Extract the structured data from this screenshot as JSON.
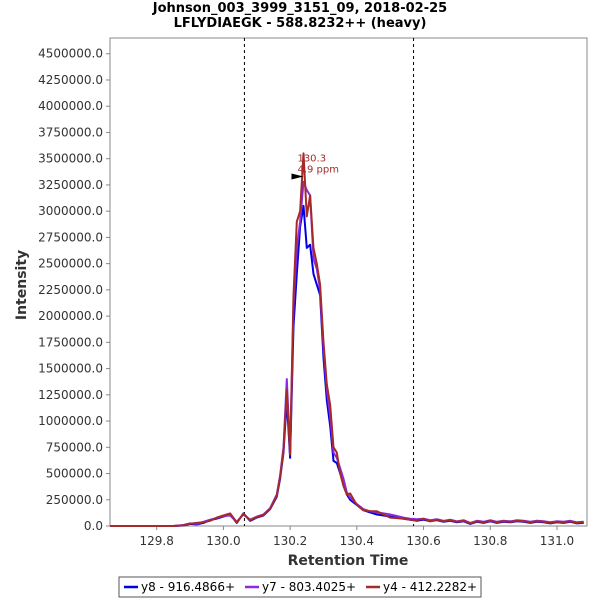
{
  "chart_data": {
    "type": "line",
    "title": "Johnson_003_3999_3151_09, 2018-02-25",
    "subtitle": "LFLYDIAEGK - 588.8232++ (heavy)",
    "xlabel": "Retention Time",
    "ylabel": "Intensity",
    "xlim": [
      129.66,
      131.09
    ],
    "ylim": [
      0,
      4650000
    ],
    "x_ticks": [
      129.8,
      130.0,
      130.2,
      130.4,
      130.6,
      130.8,
      131.0
    ],
    "x_tick_labels": [
      "129.8",
      "130.0",
      "130.2",
      "130.4",
      "130.6",
      "130.8",
      "131.0"
    ],
    "y_ticks": [
      0,
      250000,
      500000,
      750000,
      1000000,
      1250000,
      1500000,
      1750000,
      2000000,
      2250000,
      2500000,
      2750000,
      3000000,
      3250000,
      3500000,
      3750000,
      4000000,
      4250000,
      4500000
    ],
    "y_tick_labels": [
      "0.0",
      "250000.0",
      "500000.0",
      "750000.0",
      "1000000.0",
      "1250000.0",
      "1500000.0",
      "1750000.0",
      "2000000.0",
      "2250000.0",
      "2500000.0",
      "2750000.0",
      "3000000.0",
      "3250000.0",
      "3500000.0",
      "3750000.0",
      "4000000.0",
      "4250000.0",
      "4500000.0"
    ],
    "integration_bounds": [
      130.063,
      130.57
    ],
    "annotation": {
      "x": 130.24,
      "y": 3330000,
      "line1": "130.3",
      "line2": "4.9 ppm",
      "color": "#a52a2a"
    },
    "legend_position": "bottom",
    "series": [
      {
        "name": "y8 - 916.4866+",
        "color": "#0000e0",
        "x": [
          129.66,
          129.7,
          129.75,
          129.8,
          129.85,
          129.88,
          129.9,
          129.92,
          129.94,
          129.96,
          129.98,
          130.0,
          130.02,
          130.04,
          130.06,
          130.08,
          130.1,
          130.12,
          130.14,
          130.16,
          130.17,
          130.18,
          130.19,
          130.2,
          130.21,
          130.22,
          130.23,
          130.24,
          130.25,
          130.26,
          130.27,
          130.28,
          130.29,
          130.3,
          130.31,
          130.32,
          130.33,
          130.34,
          130.35,
          130.36,
          130.37,
          130.38,
          130.4,
          130.42,
          130.44,
          130.46,
          130.48,
          130.5,
          130.52,
          130.54,
          130.56,
          130.58,
          130.6,
          130.62,
          130.64,
          130.66,
          130.68,
          130.7,
          130.72,
          130.74,
          130.76,
          130.78,
          130.8,
          130.82,
          130.84,
          130.86,
          130.88,
          130.9,
          130.92,
          130.94,
          130.96,
          130.98,
          131.0,
          131.02,
          131.04,
          131.06,
          131.08
        ],
        "values": [
          0,
          0,
          0,
          0,
          0,
          5000,
          20000,
          15000,
          30000,
          55000,
          70000,
          90000,
          110000,
          30000,
          120000,
          50000,
          80000,
          100000,
          160000,
          280000,
          450000,
          700000,
          1200000,
          650000,
          1900000,
          2400000,
          2850000,
          3050000,
          2650000,
          2680000,
          2400000,
          2300000,
          2200000,
          1600000,
          1200000,
          950000,
          620000,
          600000,
          500000,
          420000,
          300000,
          250000,
          200000,
          150000,
          130000,
          110000,
          100000,
          90000,
          80000,
          70000,
          60000,
          50000,
          60000,
          45000,
          55000,
          40000,
          50000,
          35000,
          45000,
          20000,
          40000,
          30000,
          45000,
          30000,
          40000,
          35000,
          45000,
          40000,
          30000,
          40000,
          35000,
          25000,
          35000,
          30000,
          40000,
          25000,
          30000
        ]
      },
      {
        "name": "y7 - 803.4025+",
        "color": "#8a2be2",
        "x": [
          129.66,
          129.7,
          129.75,
          129.8,
          129.85,
          129.88,
          129.9,
          129.92,
          129.94,
          129.96,
          129.98,
          130.0,
          130.02,
          130.04,
          130.06,
          130.08,
          130.1,
          130.12,
          130.14,
          130.16,
          130.17,
          130.18,
          130.19,
          130.2,
          130.21,
          130.22,
          130.23,
          130.24,
          130.25,
          130.26,
          130.27,
          130.28,
          130.29,
          130.3,
          130.31,
          130.32,
          130.33,
          130.34,
          130.35,
          130.36,
          130.37,
          130.38,
          130.4,
          130.42,
          130.44,
          130.46,
          130.48,
          130.5,
          130.52,
          130.54,
          130.56,
          130.58,
          130.6,
          130.62,
          130.64,
          130.66,
          130.68,
          130.7,
          130.72,
          130.74,
          130.76,
          130.78,
          130.8,
          130.82,
          130.84,
          130.86,
          130.88,
          130.9,
          130.92,
          130.94,
          130.96,
          130.98,
          131.0,
          131.02,
          131.04,
          131.06,
          131.08
        ],
        "values": [
          0,
          0,
          0,
          0,
          0,
          10000,
          25000,
          20000,
          40000,
          60000,
          75000,
          95000,
          100000,
          40000,
          110000,
          60000,
          90000,
          110000,
          170000,
          300000,
          480000,
          750000,
          1400000,
          700000,
          2100000,
          2650000,
          2900000,
          3280000,
          3200000,
          3150000,
          2550000,
          2450000,
          2250000,
          1700000,
          1300000,
          1050000,
          700000,
          650000,
          550000,
          450000,
          320000,
          270000,
          210000,
          160000,
          140000,
          130000,
          120000,
          110000,
          95000,
          80000,
          70000,
          65000,
          70000,
          55000,
          65000,
          50000,
          60000,
          45000,
          55000,
          30000,
          50000,
          40000,
          55000,
          40000,
          50000,
          45000,
          55000,
          50000,
          40000,
          50000,
          45000,
          35000,
          45000,
          40000,
          50000,
          35000,
          40000
        ]
      },
      {
        "name": "y4 - 412.2282+",
        "color": "#a52a2a",
        "x": [
          129.66,
          129.7,
          129.75,
          129.8,
          129.85,
          129.88,
          129.9,
          129.92,
          129.94,
          129.96,
          129.98,
          130.0,
          130.02,
          130.04,
          130.06,
          130.08,
          130.1,
          130.12,
          130.14,
          130.16,
          130.17,
          130.18,
          130.19,
          130.2,
          130.21,
          130.22,
          130.23,
          130.24,
          130.25,
          130.26,
          130.27,
          130.28,
          130.29,
          130.3,
          130.31,
          130.32,
          130.33,
          130.34,
          130.35,
          130.36,
          130.37,
          130.38,
          130.4,
          130.42,
          130.44,
          130.46,
          130.48,
          130.5,
          130.52,
          130.54,
          130.56,
          130.58,
          130.6,
          130.62,
          130.64,
          130.66,
          130.68,
          130.7,
          130.72,
          130.74,
          130.76,
          130.78,
          130.8,
          130.82,
          130.84,
          130.86,
          130.88,
          130.9,
          130.92,
          130.94,
          130.96,
          130.98,
          131.0,
          131.02,
          131.04,
          131.06,
          131.08
        ],
        "values": [
          0,
          0,
          0,
          0,
          0,
          8000,
          22000,
          30000,
          35000,
          50000,
          80000,
          100000,
          120000,
          35000,
          115000,
          55000,
          85000,
          105000,
          165000,
          290000,
          470000,
          720000,
          1300000,
          680000,
          2200000,
          2900000,
          3000000,
          3550000,
          2950000,
          3150000,
          2650000,
          2500000,
          2300000,
          1750000,
          1350000,
          1150000,
          750000,
          700000,
          500000,
          380000,
          300000,
          310000,
          200000,
          150000,
          140000,
          140000,
          110000,
          80000,
          75000,
          70000,
          60000,
          55000,
          70000,
          45000,
          60000,
          45000,
          55000,
          40000,
          50000,
          25000,
          45000,
          35000,
          50000,
          35000,
          45000,
          40000,
          50000,
          45000,
          35000,
          45000,
          40000,
          30000,
          40000,
          35000,
          45000,
          30000,
          35000
        ]
      }
    ]
  }
}
